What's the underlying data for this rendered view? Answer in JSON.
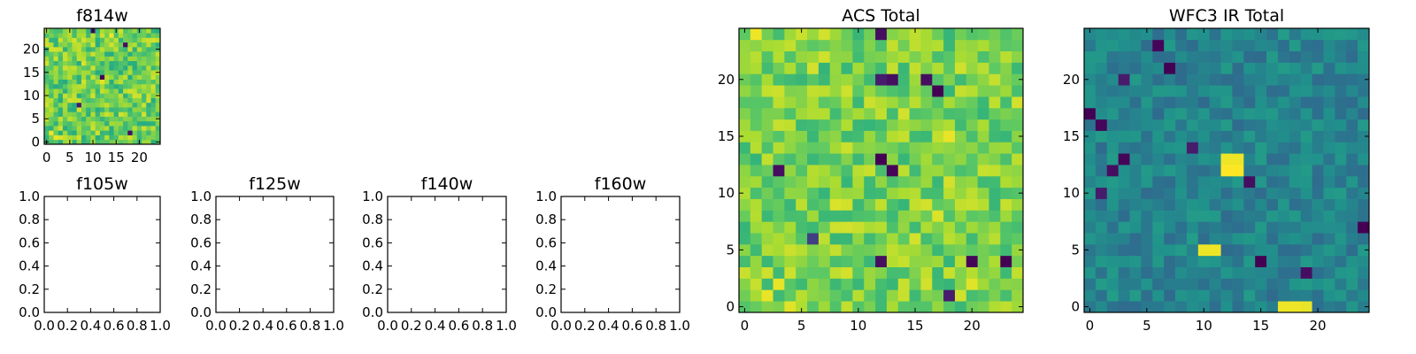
{
  "figure": {
    "background": "#ffffff",
    "colormap": "viridis"
  },
  "chart_data": [
    {
      "id": "f814w",
      "type": "heatmap",
      "title": "f814w",
      "grid_size": 25,
      "colormap": "viridis",
      "seed": 11,
      "base": 0.78,
      "spread": 0.16,
      "hot": [
        [
          1,
          2,
          0.98
        ],
        [
          2,
          1,
          0.97
        ],
        [
          3,
          1,
          0.95
        ],
        [
          14,
          23,
          0.98
        ],
        [
          12,
          13,
          0.96
        ],
        [
          8,
          17,
          0.95
        ]
      ],
      "cold": [
        [
          12,
          14,
          0.02
        ],
        [
          17,
          21,
          0.05
        ],
        [
          7,
          8,
          0.1
        ],
        [
          18,
          2,
          0.05
        ],
        [
          10,
          24,
          0.1
        ]
      ],
      "xlim": [
        -0.5,
        24.5
      ],
      "ylim": [
        -0.5,
        24.5
      ],
      "xticks": [
        0,
        5,
        10,
        15,
        20
      ],
      "yticks": [
        0,
        5,
        10,
        15,
        20
      ],
      "xtick_labels": [
        "0",
        "5",
        "10",
        "15",
        "20"
      ],
      "ytick_labels": [
        "0",
        "5",
        "10",
        "15",
        "20"
      ]
    },
    {
      "id": "f105w",
      "type": "empty",
      "title": "f105w",
      "xlim": [
        0,
        1
      ],
      "ylim": [
        0,
        1
      ],
      "xticks": [
        0,
        0.2,
        0.4,
        0.6,
        0.8,
        1.0
      ],
      "yticks": [
        0,
        0.2,
        0.4,
        0.6,
        0.8,
        1.0
      ],
      "xtick_labels": [
        "0.0",
        "0.2",
        "0.4",
        "0.6",
        "0.8",
        "1.0"
      ],
      "ytick_labels": [
        "0.0",
        "0.2",
        "0.4",
        "0.6",
        "0.8",
        "1.0"
      ]
    },
    {
      "id": "f125w",
      "type": "empty",
      "title": "f125w",
      "xlim": [
        0,
        1
      ],
      "ylim": [
        0,
        1
      ],
      "xticks": [
        0,
        0.2,
        0.4,
        0.6,
        0.8,
        1.0
      ],
      "yticks": [
        0,
        0.2,
        0.4,
        0.6,
        0.8,
        1.0
      ],
      "xtick_labels": [
        "0.0",
        "0.2",
        "0.4",
        "0.6",
        "0.8",
        "1.0"
      ],
      "ytick_labels": [
        "0.0",
        "0.2",
        "0.4",
        "0.6",
        "0.8",
        "1.0"
      ]
    },
    {
      "id": "f140w",
      "type": "empty",
      "title": "f140w",
      "xlim": [
        0,
        1
      ],
      "ylim": [
        0,
        1
      ],
      "xticks": [
        0,
        0.2,
        0.4,
        0.6,
        0.8,
        1.0
      ],
      "yticks": [
        0,
        0.2,
        0.4,
        0.6,
        0.8,
        1.0
      ],
      "xtick_labels": [
        "0.0",
        "0.2",
        "0.4",
        "0.6",
        "0.8",
        "1.0"
      ],
      "ytick_labels": [
        "0.0",
        "0.2",
        "0.4",
        "0.6",
        "0.8",
        "1.0"
      ]
    },
    {
      "id": "f160w",
      "type": "empty",
      "title": "f160w",
      "xlim": [
        0,
        1
      ],
      "ylim": [
        0,
        1
      ],
      "xticks": [
        0,
        0.2,
        0.4,
        0.6,
        0.8,
        1.0
      ],
      "yticks": [
        0,
        0.2,
        0.4,
        0.6,
        0.8,
        1.0
      ],
      "xtick_labels": [
        "0.0",
        "0.2",
        "0.4",
        "0.6",
        "0.8",
        "1.0"
      ],
      "ytick_labels": [
        "0.0",
        "0.2",
        "0.4",
        "0.6",
        "0.8",
        "1.0"
      ]
    },
    {
      "id": "acs-total",
      "type": "heatmap",
      "title": "ACS Total",
      "grid_size": 25,
      "colormap": "viridis",
      "seed": 23,
      "base": 0.8,
      "spread": 0.14,
      "hot": [
        [
          1,
          24,
          0.98
        ],
        [
          2,
          1,
          0.97
        ],
        [
          3,
          2,
          0.97
        ],
        [
          4,
          0,
          0.96
        ],
        [
          18,
          15,
          0.97
        ],
        [
          17,
          8,
          0.95
        ],
        [
          8,
          9,
          0.95
        ],
        [
          20,
          2,
          0.96
        ]
      ],
      "cold": [
        [
          12,
          13,
          0.0
        ],
        [
          13,
          12,
          0.02
        ],
        [
          17,
          19,
          0.0
        ],
        [
          16,
          20,
          0.05
        ],
        [
          12,
          20,
          0.1
        ],
        [
          13,
          20,
          0.05
        ],
        [
          20,
          4,
          0.02
        ],
        [
          23,
          4,
          0.0
        ],
        [
          18,
          1,
          0.1
        ],
        [
          12,
          4,
          0.05
        ],
        [
          3,
          12,
          0.05
        ],
        [
          6,
          6,
          0.2
        ],
        [
          12,
          24,
          0.05
        ]
      ],
      "xlim": [
        -0.5,
        24.5
      ],
      "ylim": [
        -0.5,
        24.5
      ],
      "xticks": [
        0,
        5,
        10,
        15,
        20
      ],
      "yticks": [
        0,
        5,
        10,
        15,
        20
      ],
      "xtick_labels": [
        "0",
        "5",
        "10",
        "15",
        "20"
      ],
      "ytick_labels": [
        "0",
        "5",
        "10",
        "15",
        "20"
      ]
    },
    {
      "id": "wfc3-ir-total",
      "type": "heatmap",
      "title": "WFC3 IR Total",
      "grid_size": 25,
      "colormap": "viridis",
      "seed": 37,
      "base": 0.45,
      "spread": 0.1,
      "hot": [
        [
          12,
          12,
          1.0
        ],
        [
          13,
          12,
          1.0
        ],
        [
          12,
          13,
          0.98
        ],
        [
          13,
          13,
          0.98
        ],
        [
          10,
          5,
          0.98
        ],
        [
          11,
          5,
          0.98
        ],
        [
          17,
          0,
          0.98
        ],
        [
          18,
          0,
          0.98
        ],
        [
          19,
          0,
          0.97
        ]
      ],
      "cold": [
        [
          6,
          23,
          0.02
        ],
        [
          7,
          21,
          0.0
        ],
        [
          3,
          13,
          0.02
        ],
        [
          2,
          12,
          0.05
        ],
        [
          1,
          16,
          0.02
        ],
        [
          0,
          17,
          0.0
        ],
        [
          14,
          11,
          0.05
        ],
        [
          15,
          4,
          0.0
        ],
        [
          19,
          3,
          0.05
        ],
        [
          24,
          7,
          0.0
        ],
        [
          1,
          10,
          0.1
        ],
        [
          3,
          20,
          0.1
        ],
        [
          9,
          14,
          0.1
        ]
      ],
      "xlim": [
        -0.5,
        24.5
      ],
      "ylim": [
        -0.5,
        24.5
      ],
      "xticks": [
        0,
        5,
        10,
        15,
        20
      ],
      "yticks": [
        0,
        5,
        10,
        15,
        20
      ],
      "xtick_labels": [
        "0",
        "5",
        "10",
        "15",
        "20"
      ],
      "ytick_labels": [
        "0",
        "5",
        "10",
        "15",
        "20"
      ]
    }
  ]
}
